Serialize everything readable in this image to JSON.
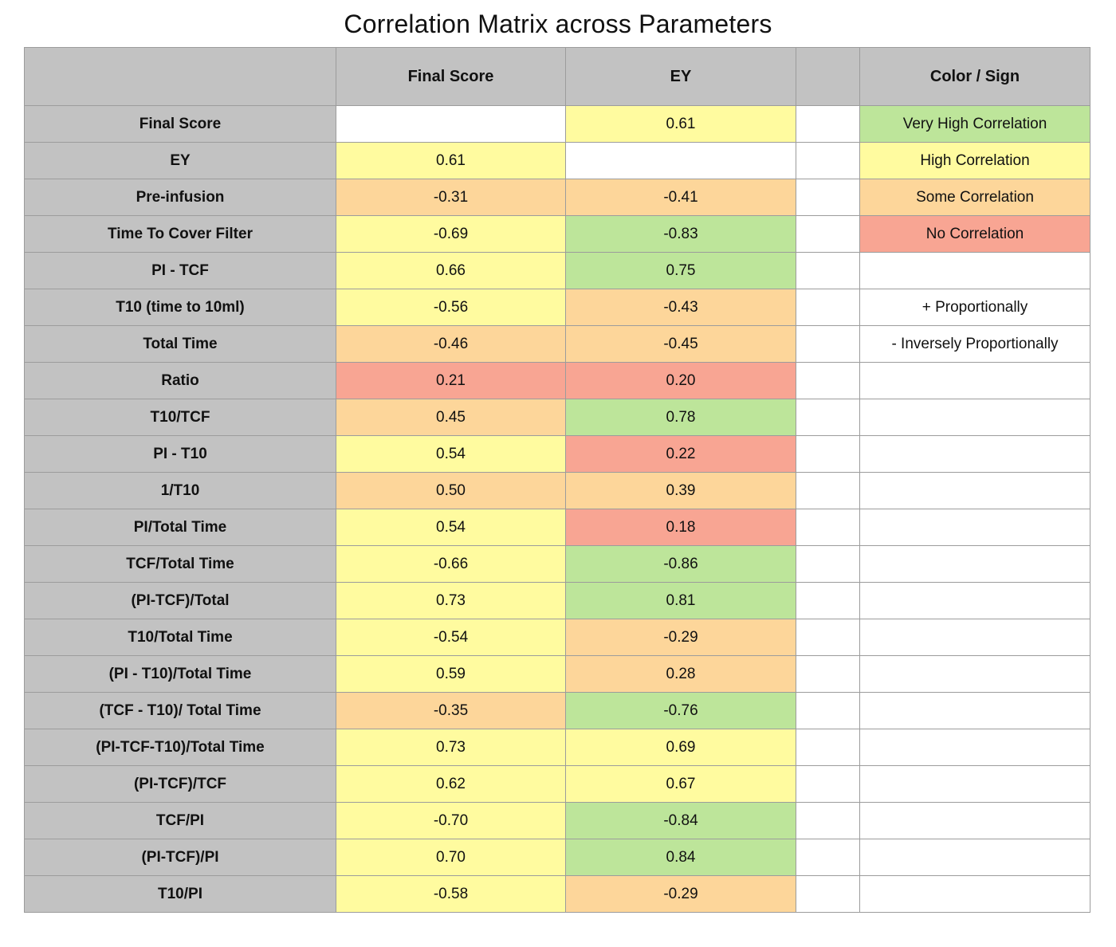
{
  "chart_data": {
    "type": "table",
    "title": "Correlation Matrix across Parameters",
    "columns": [
      "Final Score",
      "EY"
    ],
    "legend_header": "Color / Sign",
    "colors": {
      "very_high": "#bde59a",
      "high": "#fffb9f",
      "some": "#fdd69a",
      "none": "#f8a593",
      "header_bg": "#c2c2c2",
      "empty": "#ffffff"
    },
    "legend": [
      {
        "label": "Very High Correlation",
        "level": "very_high"
      },
      {
        "label": "High Correlation",
        "level": "high"
      },
      {
        "label": "Some Correlation",
        "level": "some"
      },
      {
        "label": "No Correlation",
        "level": "none"
      },
      {
        "label": "",
        "level": ""
      },
      {
        "label": "+ Proportionally",
        "level": ""
      },
      {
        "label": "- Inversely Proportionally",
        "level": ""
      }
    ],
    "rows": [
      {
        "label": "Final Score",
        "values": [
          "",
          "0.61"
        ],
        "levels": [
          "",
          "high"
        ]
      },
      {
        "label": "EY",
        "values": [
          "0.61",
          ""
        ],
        "levels": [
          "high",
          ""
        ]
      },
      {
        "label": "Pre-infusion",
        "values": [
          "-0.31",
          "-0.41"
        ],
        "levels": [
          "some",
          "some"
        ]
      },
      {
        "label": "Time To Cover Filter",
        "values": [
          "-0.69",
          "-0.83"
        ],
        "levels": [
          "high",
          "very_high"
        ]
      },
      {
        "label": "PI - TCF",
        "values": [
          "0.66",
          "0.75"
        ],
        "levels": [
          "high",
          "very_high"
        ]
      },
      {
        "label": "T10 (time to 10ml)",
        "values": [
          "-0.56",
          "-0.43"
        ],
        "levels": [
          "high",
          "some"
        ]
      },
      {
        "label": "Total Time",
        "values": [
          "-0.46",
          "-0.45"
        ],
        "levels": [
          "some",
          "some"
        ]
      },
      {
        "label": "Ratio",
        "values": [
          "0.21",
          "0.20"
        ],
        "levels": [
          "none",
          "none"
        ]
      },
      {
        "label": "T10/TCF",
        "values": [
          "0.45",
          "0.78"
        ],
        "levels": [
          "some",
          "very_high"
        ]
      },
      {
        "label": "PI - T10",
        "values": [
          "0.54",
          "0.22"
        ],
        "levels": [
          "high",
          "none"
        ]
      },
      {
        "label": "1/T10",
        "values": [
          "0.50",
          "0.39"
        ],
        "levels": [
          "some",
          "some"
        ]
      },
      {
        "label": "PI/Total Time",
        "values": [
          "0.54",
          "0.18"
        ],
        "levels": [
          "high",
          "none"
        ]
      },
      {
        "label": "TCF/Total Time",
        "values": [
          "-0.66",
          "-0.86"
        ],
        "levels": [
          "high",
          "very_high"
        ]
      },
      {
        "label": "(PI-TCF)/Total",
        "values": [
          "0.73",
          "0.81"
        ],
        "levels": [
          "high",
          "very_high"
        ]
      },
      {
        "label": "T10/Total Time",
        "values": [
          "-0.54",
          "-0.29"
        ],
        "levels": [
          "high",
          "some"
        ]
      },
      {
        "label": "(PI - T10)/Total Time",
        "values": [
          "0.59",
          "0.28"
        ],
        "levels": [
          "high",
          "some"
        ]
      },
      {
        "label": "(TCF - T10)/ Total Time",
        "values": [
          "-0.35",
          "-0.76"
        ],
        "levels": [
          "some",
          "very_high"
        ]
      },
      {
        "label": "(PI-TCF-T10)/Total Time",
        "values": [
          "0.73",
          "0.69"
        ],
        "levels": [
          "high",
          "high"
        ]
      },
      {
        "label": "(PI-TCF)/TCF",
        "values": [
          "0.62",
          "0.67"
        ],
        "levels": [
          "high",
          "high"
        ]
      },
      {
        "label": "TCF/PI",
        "values": [
          "-0.70",
          "-0.84"
        ],
        "levels": [
          "high",
          "very_high"
        ]
      },
      {
        "label": "(PI-TCF)/PI",
        "values": [
          "0.70",
          "0.84"
        ],
        "levels": [
          "high",
          "very_high"
        ]
      },
      {
        "label": "T10/PI",
        "values": [
          "-0.58",
          "-0.29"
        ],
        "levels": [
          "high",
          "some"
        ]
      }
    ]
  }
}
